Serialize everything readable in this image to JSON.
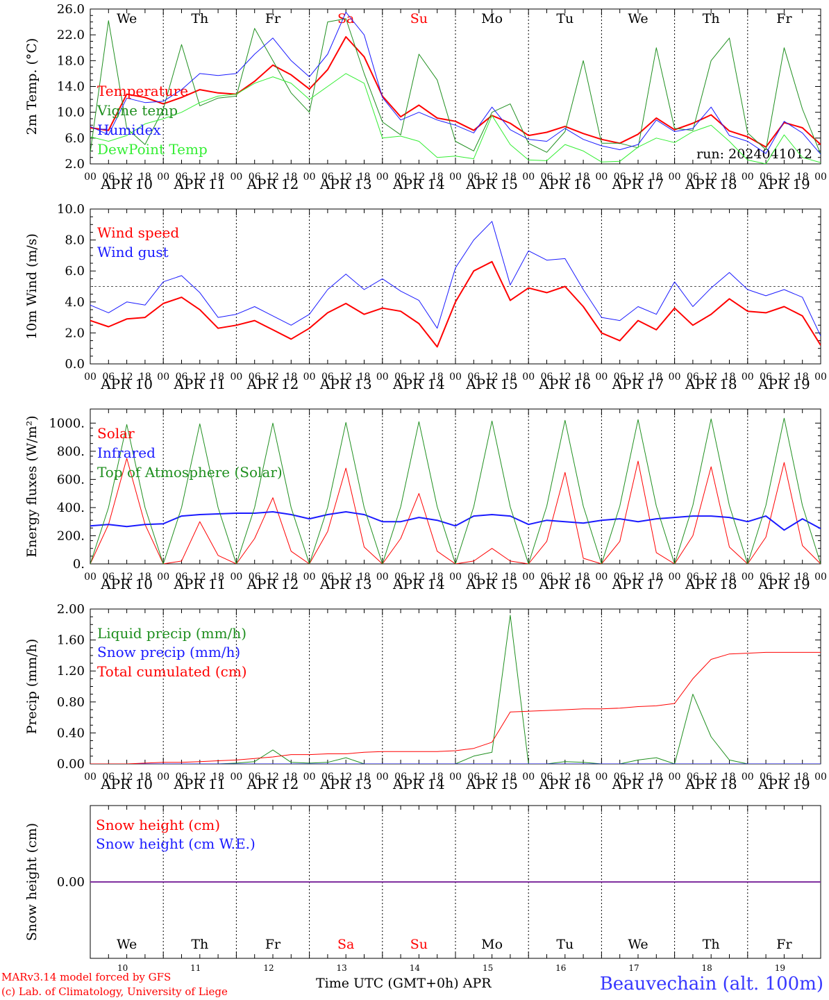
{
  "footer": {
    "credit_line1": "MARv3.14 model forced by GFS",
    "credit_line2": "(c) Lab. of Climatology, University of Liege",
    "x_caption": "Time UTC (GMT+0h) APR",
    "station": "Beauvechain (alt. 100m)"
  },
  "colors": {
    "red": "#ff0000",
    "dark_green": "#1f8f1f",
    "blue": "#1a1aff",
    "light_green": "#33ee33",
    "purple": "#7f2f9f"
  },
  "chart_data": [
    {
      "type": "line",
      "ylabel": "2m Temp. (°C)",
      "ylim": [
        2,
        26
      ],
      "yticks": [
        "2.0",
        "6.0",
        "10.0",
        "14.0",
        "18.0",
        "22.0",
        "26.0"
      ],
      "annotation": "run: 2024041012",
      "weekday_labels": [
        "We",
        "Th",
        "Fr",
        "Sa",
        "Su",
        "Mo",
        "Tu",
        "We",
        "Th",
        "Fr"
      ],
      "weekend_indices": [
        3,
        4
      ],
      "hour_ticks": [
        "00",
        "06",
        "12",
        "18"
      ],
      "date_labels": [
        "APR 10",
        "APR 11",
        "APR 12",
        "APR 13",
        "APR 14",
        "APR 15",
        "APR 16",
        "APR 17",
        "APR 18",
        "APR 19"
      ],
      "x_hours": [
        0,
        6,
        12,
        18,
        24,
        30,
        36,
        42,
        48,
        54,
        60,
        66,
        72,
        78,
        84,
        90,
        96,
        102,
        108,
        114,
        120,
        126,
        132,
        138,
        144,
        150,
        156,
        162,
        168,
        174,
        180,
        186,
        192,
        198,
        204,
        210,
        216,
        222,
        228,
        234,
        240
      ],
      "series": [
        {
          "name": "Temperature",
          "color": "#ff0000",
          "width": 2,
          "values": [
            7.6,
            7.2,
            12.8,
            12.3,
            11.3,
            12.3,
            13.5,
            13.0,
            12.8,
            14.8,
            17.3,
            15.8,
            13.6,
            16.6,
            21.7,
            18.6,
            12.5,
            9.3,
            11.1,
            9.1,
            8.6,
            7.2,
            9.5,
            8.3,
            6.4,
            6.9,
            7.8,
            6.7,
            5.8,
            5.2,
            6.6,
            9.1,
            7.3,
            8.3,
            9.6,
            7.1,
            6.2,
            4.6,
            8.4,
            7.6,
            5.0
          ]
        },
        {
          "name": "Vigne temp",
          "color": "#1f8f1f",
          "width": 1,
          "values": [
            3.8,
            24.2,
            7.5,
            5.0,
            10.5,
            20.5,
            11.0,
            12.2,
            12.5,
            23.0,
            18.0,
            13.0,
            10.0,
            24.0,
            24.5,
            16.0,
            8.5,
            6.5,
            19.0,
            15.0,
            5.5,
            4.0,
            10.0,
            11.3,
            5.2,
            3.8,
            7.0,
            18.0,
            5.2,
            5.2,
            4.5,
            20.0,
            7.5,
            7.2,
            18.0,
            21.5,
            6.8,
            4.2,
            20.0,
            10.5,
            3.5
          ]
        },
        {
          "name": "Humidex",
          "color": "#1a1aff",
          "width": 1,
          "values": [
            7.8,
            6.5,
            12.2,
            11.5,
            11.7,
            13.5,
            16.0,
            15.7,
            16.0,
            19.0,
            21.5,
            18.0,
            15.5,
            19.0,
            25.5,
            22.0,
            12.3,
            8.8,
            10.0,
            8.8,
            8.0,
            6.8,
            10.8,
            7.3,
            5.8,
            5.5,
            7.5,
            5.8,
            4.8,
            4.2,
            5.0,
            8.8,
            7.0,
            7.5,
            10.8,
            6.4,
            5.5,
            3.6,
            8.6,
            6.8,
            3.5
          ]
        },
        {
          "name": "DewPoint Temp",
          "color": "#33ee33",
          "width": 1,
          "values": [
            6.2,
            5.5,
            6.4,
            8.2,
            9.0,
            10.0,
            11.5,
            12.5,
            12.8,
            14.5,
            15.5,
            14.5,
            12.0,
            14.0,
            16.0,
            14.5,
            6.0,
            6.3,
            5.5,
            3.0,
            3.2,
            2.8,
            9.5,
            5.0,
            2.6,
            2.5,
            5.0,
            4.0,
            2.3,
            2.4,
            4.6,
            6.0,
            5.3,
            7.0,
            8.0,
            5.5,
            2.6,
            2.0,
            6.5,
            3.0,
            2.2
          ]
        }
      ]
    },
    {
      "type": "line",
      "ylabel": "10m Wind (m/s)",
      "ylim": [
        0,
        10
      ],
      "yticks": [
        "0.0",
        "2.0",
        "4.0",
        "6.0",
        "8.0",
        "10.0"
      ],
      "reference_line": 5.0,
      "hour_ticks": [
        "00",
        "06",
        "12",
        "18"
      ],
      "date_labels": [
        "APR 10",
        "APR 11",
        "APR 12",
        "APR 13",
        "APR 14",
        "APR 15",
        "APR 16",
        "APR 17",
        "APR 18",
        "APR 19"
      ],
      "x_hours": [
        0,
        6,
        12,
        18,
        24,
        30,
        36,
        42,
        48,
        54,
        60,
        66,
        72,
        78,
        84,
        90,
        96,
        102,
        108,
        114,
        120,
        126,
        132,
        138,
        144,
        150,
        156,
        162,
        168,
        174,
        180,
        186,
        192,
        198,
        204,
        210,
        216,
        222,
        228,
        234,
        240
      ],
      "series": [
        {
          "name": "Wind speed",
          "color": "#ff0000",
          "width": 2,
          "values": [
            2.8,
            2.4,
            2.9,
            3.0,
            3.9,
            4.3,
            3.5,
            2.3,
            2.5,
            2.8,
            2.2,
            1.6,
            2.3,
            3.3,
            3.9,
            3.2,
            3.6,
            3.4,
            2.6,
            1.1,
            4.0,
            6.0,
            6.6,
            4.1,
            4.9,
            4.6,
            5.0,
            3.7,
            2.0,
            1.5,
            2.8,
            2.2,
            3.6,
            2.5,
            3.2,
            4.2,
            3.4,
            3.3,
            3.7,
            3.1,
            1.2
          ]
        },
        {
          "name": "Wind gust",
          "color": "#1a1aff",
          "width": 1,
          "values": [
            3.8,
            3.3,
            4.0,
            3.8,
            5.3,
            5.7,
            4.6,
            3.0,
            3.2,
            3.7,
            3.1,
            2.5,
            3.2,
            4.8,
            5.8,
            4.8,
            5.5,
            4.7,
            4.1,
            2.3,
            6.2,
            8.0,
            9.2,
            5.1,
            7.3,
            6.7,
            6.8,
            4.8,
            3.0,
            2.8,
            3.7,
            3.2,
            5.3,
            3.7,
            4.9,
            5.9,
            4.8,
            4.4,
            4.8,
            4.3,
            1.8
          ]
        }
      ]
    },
    {
      "type": "line",
      "ylabel": "Energy fluxes (W/m²)",
      "ylim": [
        0,
        1100
      ],
      "yticks": [
        "0.",
        "200.",
        "400.",
        "600.",
        "800.",
        "1000."
      ],
      "hour_ticks": [
        "00",
        "06",
        "12",
        "18"
      ],
      "date_labels": [
        "APR 10",
        "APR 11",
        "APR 12",
        "APR 13",
        "APR 14",
        "APR 15",
        "APR 16",
        "APR 17",
        "APR 18",
        "APR 19"
      ],
      "x_hours": [
        0,
        6,
        12,
        18,
        24,
        30,
        36,
        42,
        48,
        54,
        60,
        66,
        72,
        78,
        84,
        90,
        96,
        102,
        108,
        114,
        120,
        126,
        132,
        138,
        144,
        150,
        156,
        162,
        168,
        174,
        180,
        186,
        192,
        198,
        204,
        210,
        216,
        222,
        228,
        234,
        240
      ],
      "series": [
        {
          "name": "Solar",
          "color": "#ff0000",
          "width": 1,
          "values": [
            0,
            280,
            750,
            280,
            0,
            20,
            300,
            60,
            0,
            180,
            470,
            90,
            0,
            230,
            680,
            120,
            0,
            180,
            500,
            90,
            0,
            20,
            110,
            20,
            0,
            160,
            650,
            40,
            0,
            160,
            730,
            80,
            0,
            200,
            690,
            120,
            0,
            190,
            720,
            130,
            0
          ]
        },
        {
          "name": "Infrared",
          "color": "#1a1aff",
          "width": 2,
          "values": [
            270,
            280,
            265,
            280,
            285,
            340,
            350,
            355,
            360,
            360,
            370,
            350,
            320,
            350,
            370,
            350,
            300,
            300,
            330,
            310,
            270,
            340,
            350,
            340,
            280,
            310,
            300,
            290,
            310,
            320,
            300,
            320,
            330,
            340,
            340,
            330,
            300,
            340,
            240,
            320,
            250
          ]
        },
        {
          "name": "Top of Atmosphere (Solar)",
          "color": "#1f8f1f",
          "width": 1,
          "values": [
            0,
            400,
            990,
            400,
            0,
            400,
            995,
            400,
            0,
            400,
            1000,
            400,
            0,
            400,
            1005,
            400,
            0,
            405,
            1010,
            405,
            0,
            405,
            1015,
            405,
            0,
            410,
            1020,
            410,
            0,
            410,
            1025,
            410,
            0,
            415,
            1030,
            415,
            0,
            415,
            1035,
            415,
            0
          ]
        }
      ]
    },
    {
      "type": "line",
      "ylabel": "Precip (mm/h)",
      "ylim": [
        0,
        2
      ],
      "yticks": [
        "0.00",
        "0.40",
        "0.80",
        "1.20",
        "1.60",
        "2.00"
      ],
      "hour_ticks": [
        "00",
        "06",
        "12",
        "18"
      ],
      "date_labels": [
        "APR 10",
        "APR 11",
        "APR 12",
        "APR 13",
        "APR 14",
        "APR 15",
        "APR 16",
        "APR 17",
        "APR 18",
        "APR 19"
      ],
      "x_hours": [
        0,
        6,
        12,
        18,
        24,
        30,
        36,
        42,
        48,
        54,
        60,
        66,
        72,
        78,
        84,
        90,
        96,
        102,
        108,
        114,
        120,
        126,
        132,
        138,
        144,
        150,
        156,
        162,
        168,
        174,
        180,
        186,
        192,
        198,
        204,
        210,
        216,
        222,
        228,
        234,
        240
      ],
      "series": [
        {
          "name": "Liquid precip (mm/h)",
          "color": "#1f8f1f",
          "width": 1,
          "values": [
            0,
            0,
            0,
            0,
            0,
            0,
            0,
            0,
            0.01,
            0.03,
            0.18,
            0.02,
            0.01,
            0.02,
            0.08,
            0,
            0,
            0,
            0,
            0,
            0,
            0.1,
            0.15,
            1.92,
            0,
            0,
            0.03,
            0.02,
            0,
            0,
            0.05,
            0.08,
            0,
            0.9,
            0.35,
            0.05,
            0,
            0,
            0,
            0,
            0
          ]
        },
        {
          "name": "Snow precip (mm/h)",
          "color": "#1a1aff",
          "width": 1,
          "values": [
            0,
            0,
            0,
            0,
            0,
            0,
            0,
            0,
            0,
            0,
            0,
            0,
            0,
            0,
            0,
            0,
            0,
            0,
            0,
            0,
            0,
            0,
            0,
            0,
            0,
            0,
            0,
            0,
            0,
            0,
            0,
            0,
            0,
            0,
            0,
            0,
            0,
            0,
            0,
            0,
            0
          ]
        },
        {
          "name": "Total cumulated (cm)",
          "color": "#ff0000",
          "width": 1,
          "values": [
            0,
            0,
            0,
            0.01,
            0.02,
            0.02,
            0.03,
            0.04,
            0.05,
            0.07,
            0.09,
            0.12,
            0.12,
            0.13,
            0.13,
            0.15,
            0.16,
            0.16,
            0.16,
            0.16,
            0.17,
            0.2,
            0.28,
            0.67,
            0.68,
            0.69,
            0.7,
            0.71,
            0.71,
            0.72,
            0.74,
            0.75,
            0.78,
            1.1,
            1.35,
            1.42,
            1.43,
            1.44,
            1.44,
            1.44,
            1.44
          ]
        }
      ]
    },
    {
      "type": "line",
      "ylabel": "Snow height (cm)",
      "yticks": [
        "0.00"
      ],
      "weekday_labels": [
        "We",
        "Th",
        "Fr",
        "Sa",
        "Su",
        "Mo",
        "Tu",
        "We",
        "Th",
        "Fr"
      ],
      "weekend_indices": [
        3,
        4
      ],
      "day_numbers": [
        "10",
        "11",
        "12",
        "13",
        "14",
        "15",
        "16",
        "17",
        "18",
        "19"
      ],
      "series": [
        {
          "name": "Snow height (cm)",
          "color": "#ff0000",
          "value": 0.0
        },
        {
          "name": "Snow height (cm W.E.)",
          "color": "#1a1aff",
          "value": 0.0
        }
      ]
    }
  ]
}
